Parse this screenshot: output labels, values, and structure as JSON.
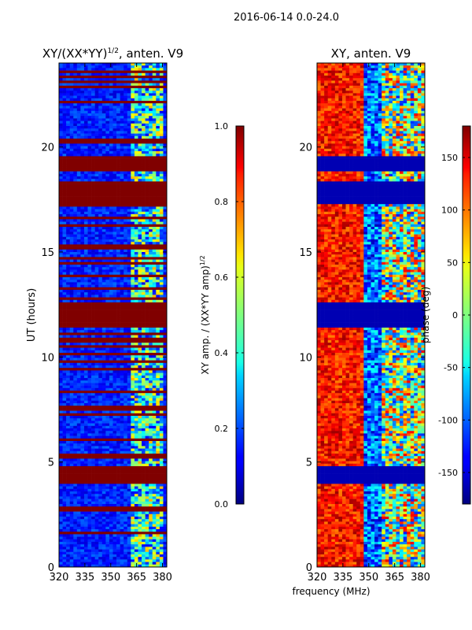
{
  "suptitle": "2016-06-14 0.0-24.0",
  "shared_xlabel": "frequency (MHz)",
  "chart_data": [
    {
      "type": "heatmap",
      "title_base": "XY/(XX*YY)",
      "title_exponent": "1/2",
      "title_suffix": ", anten. V9",
      "xlabel": "",
      "ylabel": "UT (hours)",
      "xlim": [
        320,
        382.5
      ],
      "ylim": [
        0,
        24
      ],
      "xticks": [
        320,
        335,
        350,
        365,
        380
      ],
      "yticks": [
        0,
        5,
        10,
        15,
        20
      ],
      "colorbar": {
        "label_base": "XY amp. / (XX*YY amp)",
        "label_exponent": "1/2",
        "range": [
          0.0,
          1.0
        ],
        "ticks": [
          "0.0",
          "0.2",
          "0.4",
          "0.6",
          "0.8",
          "1.0"
        ],
        "colormap": "jet"
      },
      "flagged_bands_hours": [
        [
          0,
          0.05
        ],
        [
          3.9,
          4.8
        ],
        [
          11.4,
          12.6
        ],
        [
          17.3,
          18.4
        ],
        [
          18.9,
          19.5
        ]
      ]
    },
    {
      "type": "heatmap",
      "title": "XY, anten. V9",
      "xlabel": "",
      "ylabel": "",
      "xlim": [
        320,
        382.5
      ],
      "ylim": [
        0,
        24
      ],
      "xticks": [
        320,
        335,
        350,
        365,
        380
      ],
      "yticks": [
        0,
        5,
        10,
        15,
        20
      ],
      "colorbar": {
        "label": "phase (deg)",
        "range": [
          -180,
          180
        ],
        "ticks": [
          "-150",
          "-100",
          "-50",
          "0",
          "50",
          "100",
          "150"
        ],
        "colormap": "jet"
      },
      "flagged_bands_hours": [
        [
          0,
          0.05
        ],
        [
          3.9,
          4.8
        ],
        [
          11.4,
          12.6
        ],
        [
          17.3,
          18.4
        ],
        [
          18.9,
          19.5
        ]
      ]
    }
  ]
}
